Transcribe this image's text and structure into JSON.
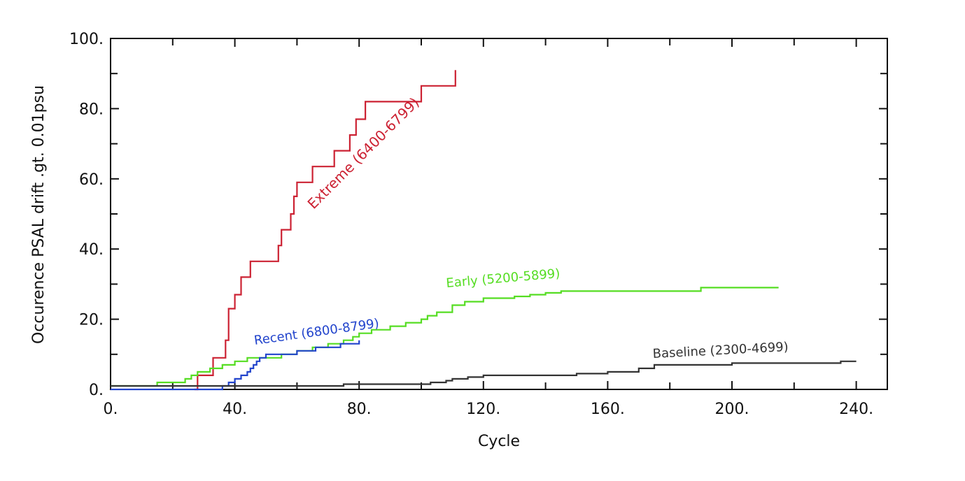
{
  "chart_data": {
    "type": "line",
    "xlabel": "Cycle",
    "ylabel": "Occurence PSAL drift .gt. 0.01psu",
    "xlim": [
      0,
      250
    ],
    "ylim": [
      0,
      100
    ],
    "x_ticks": [
      0,
      40,
      80,
      120,
      160,
      200,
      240
    ],
    "x_tick_labels": [
      "0.",
      "40.",
      "80.",
      "120.",
      "160.",
      "200.",
      "240."
    ],
    "y_ticks": [
      0,
      20,
      40,
      60,
      80,
      100
    ],
    "y_tick_labels": [
      "0.",
      "20.",
      "40.",
      "60.",
      "80.",
      "100."
    ],
    "grid": false,
    "series": [
      {
        "name": "Extreme (6400-6799)",
        "color": "#cc2233",
        "x": [
          27,
          28,
          29,
          30,
          31,
          33,
          34,
          35,
          36,
          37,
          38,
          39,
          40,
          41,
          42,
          43,
          45,
          48,
          50,
          53,
          54,
          55,
          56,
          58,
          59,
          60,
          62,
          64,
          65,
          67,
          69,
          70,
          72,
          74,
          75,
          77,
          78,
          79,
          80,
          81,
          82,
          84,
          88,
          92,
          96,
          99,
          100,
          103,
          107,
          110,
          111
        ],
        "y": [
          0,
          4,
          4,
          4,
          4,
          9,
          9,
          9,
          9,
          14,
          23,
          23,
          27,
          27,
          32,
          32,
          36.5,
          36.5,
          36.5,
          36.5,
          41,
          45.5,
          45.5,
          50,
          55,
          59,
          59,
          59,
          63.5,
          63.5,
          63.5,
          63.5,
          68,
          68,
          68,
          72.5,
          72.5,
          77,
          77,
          77,
          82,
          82,
          82,
          82,
          82,
          82,
          86.5,
          86.5,
          86.5,
          86.5,
          91
        ]
      },
      {
        "name": "Early (5200-5899)",
        "color": "#55dd22",
        "x": [
          0,
          5,
          10,
          14,
          15,
          18,
          20,
          22,
          24,
          26,
          28,
          30,
          32,
          34,
          36,
          38,
          40,
          42,
          44,
          46,
          48,
          50,
          55,
          58,
          60,
          62,
          65,
          68,
          70,
          73,
          75,
          78,
          80,
          82,
          84,
          86,
          90,
          93,
          95,
          98,
          100,
          102,
          105,
          108,
          110,
          112,
          114,
          116,
          120,
          125,
          130,
          135,
          140,
          145,
          150,
          160,
          170,
          180,
          190,
          200,
          210,
          215
        ],
        "y": [
          1,
          1,
          1,
          1,
          2,
          2,
          2,
          2,
          3,
          4,
          5,
          5,
          6,
          6,
          7,
          7,
          8,
          8,
          9,
          9,
          9,
          9,
          10,
          10,
          11,
          11,
          12,
          12,
          13,
          13,
          14,
          15,
          16,
          16,
          17,
          17,
          18,
          18,
          19,
          19,
          20,
          21,
          22,
          22,
          24,
          24,
          25,
          25,
          26,
          26,
          26.5,
          27,
          27.5,
          28,
          28,
          28,
          28,
          28,
          29,
          29,
          29,
          29
        ]
      },
      {
        "name": "Recent (6800-8799)",
        "color": "#2244cc",
        "x": [
          0,
          10,
          20,
          30,
          35,
          36,
          37,
          38,
          40,
          41,
          42,
          43,
          44,
          45,
          46,
          47,
          48,
          49,
          50,
          52,
          54,
          56,
          58,
          60,
          62,
          64,
          66,
          68,
          70,
          72,
          74,
          76,
          78,
          80
        ],
        "y": [
          0,
          0,
          0,
          0,
          0,
          1,
          1,
          2,
          3,
          3,
          4,
          4,
          5,
          6,
          7,
          8,
          9,
          9,
          10,
          10,
          10,
          10,
          10,
          11,
          11,
          11,
          12,
          12,
          12,
          12,
          13,
          13,
          13,
          14
        ]
      },
      {
        "name": "Baseline (2300-4699)",
        "color": "#333333",
        "x": [
          0,
          10,
          20,
          30,
          40,
          50,
          60,
          70,
          75,
          80,
          90,
          100,
          103,
          105,
          108,
          110,
          112,
          115,
          118,
          120,
          130,
          140,
          145,
          150,
          155,
          160,
          165,
          170,
          172,
          175,
          180,
          185,
          190,
          200,
          210,
          220,
          230,
          235,
          240
        ],
        "y": [
          1,
          1,
          1,
          1,
          1,
          1,
          1,
          1,
          1.5,
          1.5,
          1.5,
          1.5,
          2,
          2,
          2.5,
          3,
          3,
          3.5,
          3.5,
          4,
          4,
          4,
          4,
          4.5,
          4.5,
          5,
          5,
          6,
          6,
          7,
          7,
          7,
          7,
          7.5,
          7.5,
          7.5,
          7.5,
          8,
          8
        ]
      }
    ],
    "annotations": [
      {
        "text": "Extreme (6400-6799)",
        "color": "#cc2233",
        "series": "Extreme (6400-6799)"
      },
      {
        "text": "Early (5200-5899)",
        "color": "#55dd22",
        "series": "Early (5200-5899)"
      },
      {
        "text": "Recent (6800-8799)",
        "color": "#2244cc",
        "series": "Recent (6800-8799)"
      },
      {
        "text": "Baseline (2300-4699)",
        "color": "#333333",
        "series": "Baseline (2300-4699)"
      }
    ]
  }
}
